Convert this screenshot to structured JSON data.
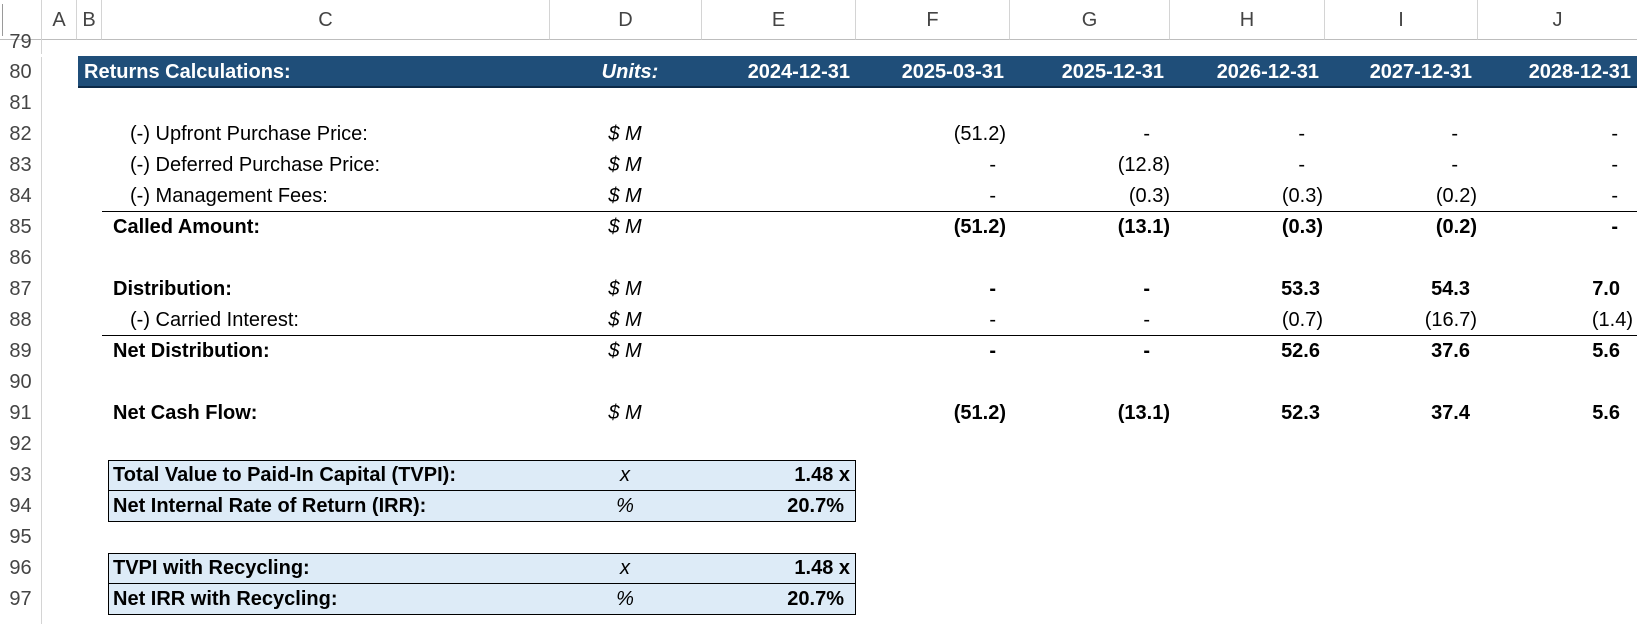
{
  "columns": [
    "A",
    "B",
    "C",
    "D",
    "E",
    "F",
    "G",
    "H",
    "I",
    "J"
  ],
  "rows": [
    "79",
    "80",
    "81",
    "82",
    "83",
    "84",
    "85",
    "86",
    "87",
    "88",
    "89",
    "90",
    "91",
    "92",
    "93",
    "94",
    "95",
    "96",
    "97"
  ],
  "header": {
    "title": "Returns Calculations:",
    "units_label": "Units:",
    "dates": [
      "2024-12-31",
      "2025-03-31",
      "2025-12-31",
      "2026-12-31",
      "2027-12-31",
      "2028-12-31"
    ]
  },
  "table": [
    {
      "label": "(-) Upfront Purchase Price:",
      "unit": "$ M",
      "values": [
        "",
        "(51.2)",
        "-",
        "-",
        "-",
        "-"
      ]
    },
    {
      "label": "(-) Deferred Purchase Price:",
      "unit": "$ M",
      "values": [
        "",
        "-",
        "(12.8)",
        "-",
        "-",
        "-"
      ]
    },
    {
      "label": "(-) Management Fees:",
      "unit": "$ M",
      "values": [
        "",
        "-",
        "(0.3)",
        "(0.3)",
        "(0.2)",
        "-"
      ]
    },
    {
      "label": "Called Amount:",
      "unit": "$ M",
      "values": [
        "",
        "(51.2)",
        "(13.1)",
        "(0.3)",
        "(0.2)",
        "-"
      ]
    },
    {
      "label": "Distribution:",
      "unit": "$ M",
      "values": [
        "",
        "-",
        "-",
        "53.3",
        "54.3",
        "7.0"
      ]
    },
    {
      "label": "(-) Carried Interest:",
      "unit": "$ M",
      "values": [
        "",
        "-",
        "-",
        "(0.7)",
        "(16.7)",
        "(1.4)"
      ]
    },
    {
      "label": "Net Distribution:",
      "unit": "$ M",
      "values": [
        "",
        "-",
        "-",
        "52.6",
        "37.6",
        "5.6"
      ]
    },
    {
      "label": "Net Cash Flow:",
      "unit": "$ M",
      "values": [
        "",
        "(51.2)",
        "(13.1)",
        "52.3",
        "37.4",
        "5.6"
      ]
    }
  ],
  "metrics": [
    {
      "label": "Total Value to Paid-In Capital (TVPI):",
      "unit": "x",
      "value": "1.48 x"
    },
    {
      "label": "Net Internal Rate of Return (IRR):",
      "unit": "%",
      "value": "20.7%"
    },
    {
      "label": "TVPI with Recycling:",
      "unit": "x",
      "value": "1.48 x"
    },
    {
      "label": "Net IRR with Recycling:",
      "unit": "%",
      "value": "20.7%"
    }
  ],
  "colors": {
    "header_fill": "#1f4e79",
    "header_text": "#ffffff",
    "metric_fill": "#ddebf7"
  }
}
